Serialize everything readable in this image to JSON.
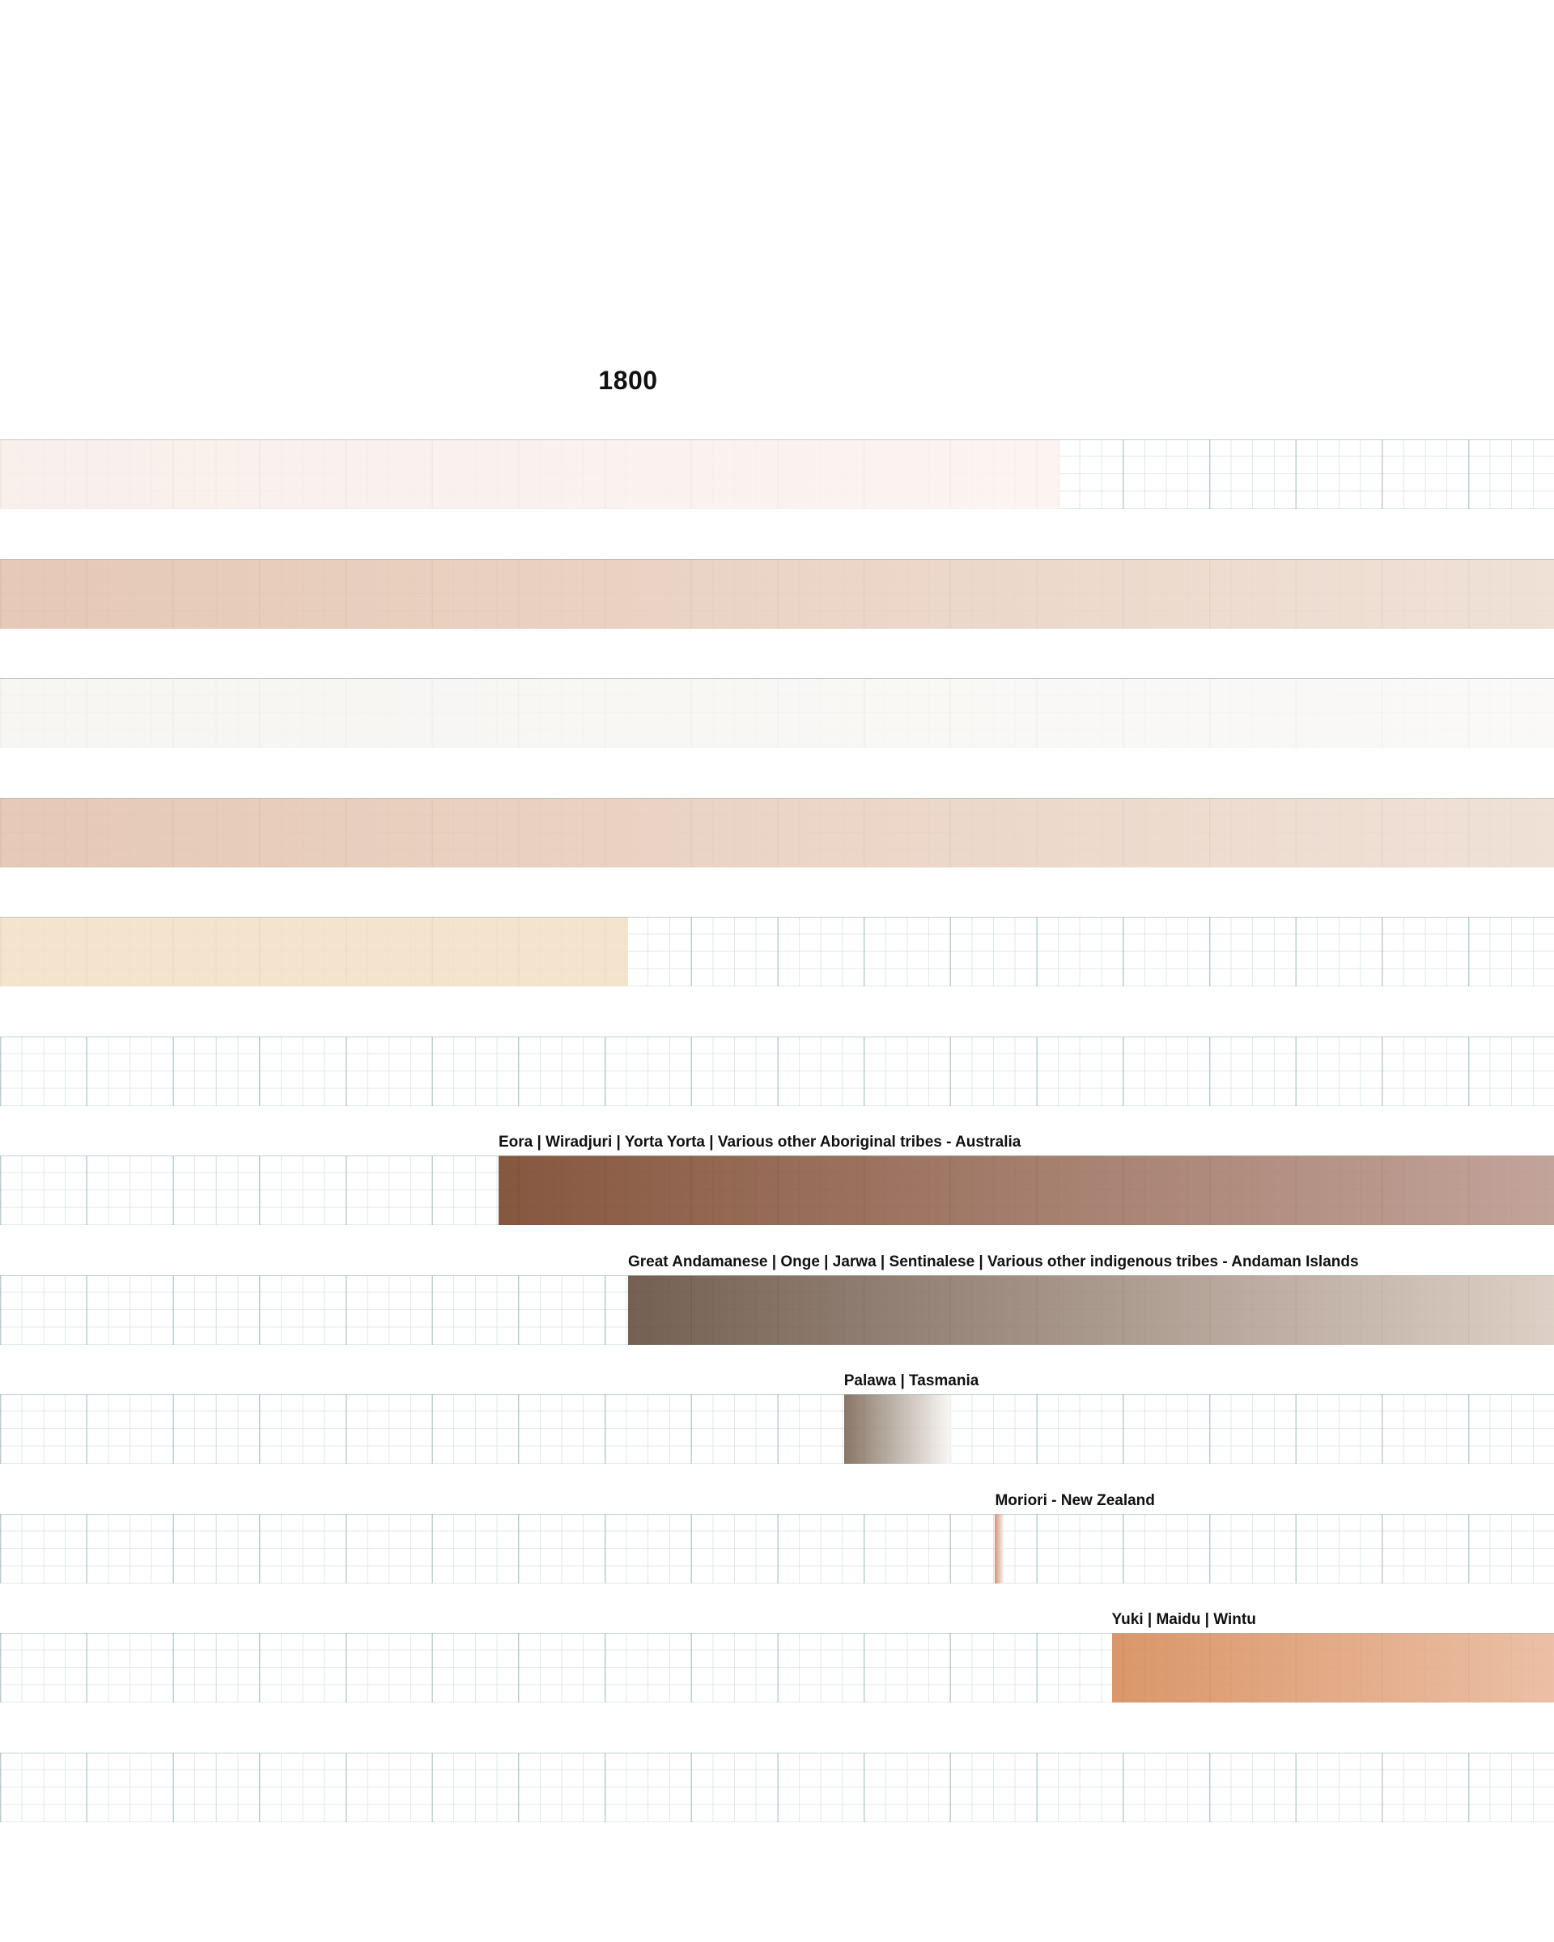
{
  "chart_data": {
    "type": "gantt",
    "title": "",
    "xlabel": "",
    "ylabel": "",
    "x_tick_labels": [
      "1800"
    ],
    "grid": true,
    "rows": [
      {
        "label": "",
        "start": null,
        "end": 1900,
        "colors": [
          "#f8ece8",
          "#fbf2ef"
        ]
      },
      {
        "label": "",
        "start": null,
        "end": null,
        "colors": [
          "#e2c0aa",
          "#eddcd0"
        ]
      },
      {
        "label": "",
        "start": null,
        "end": null,
        "colors": [
          "#f6f4f0",
          "#f9f8f6"
        ]
      },
      {
        "label": "",
        "start": null,
        "end": null,
        "colors": [
          "#e2c0aa",
          "#eddcd0"
        ]
      },
      {
        "label": "",
        "start": null,
        "end": 1800,
        "colors": [
          "#f2dfc6",
          "#f2dfc6"
        ]
      },
      {
        "label": "",
        "start": null,
        "end": null,
        "colors": []
      },
      {
        "label": "Eora | Wiradjuri | Yorta Yorta | Various other Aboriginal tribes - Australia",
        "start": 1770,
        "end": null,
        "colors": [
          "#733c20",
          "#b9958a"
        ]
      },
      {
        "label": "Great Andamanese | Onge | Jarwa | Sentinalese | Various other indigenous tribes - Andaman Islands",
        "start": 1800,
        "end": null,
        "colors": [
          "#5e4637",
          "#d8c8bc"
        ]
      },
      {
        "label": "Palawa | Tasmania",
        "start": 1850,
        "end": 1875,
        "colors": [
          "#76604f",
          "#faf8f4"
        ]
      },
      {
        "label": "Moriori -  New Zealand",
        "start": 1885,
        "end": 1887,
        "colors": [
          "#c98368",
          "#faf1ee"
        ]
      },
      {
        "label": "Yuki | Maidu | Wintu",
        "start": 1912,
        "end": null,
        "colors": [
          "#d48651",
          "#e9b597"
        ]
      },
      {
        "label": "",
        "start": null,
        "end": null,
        "colors": []
      }
    ]
  }
}
